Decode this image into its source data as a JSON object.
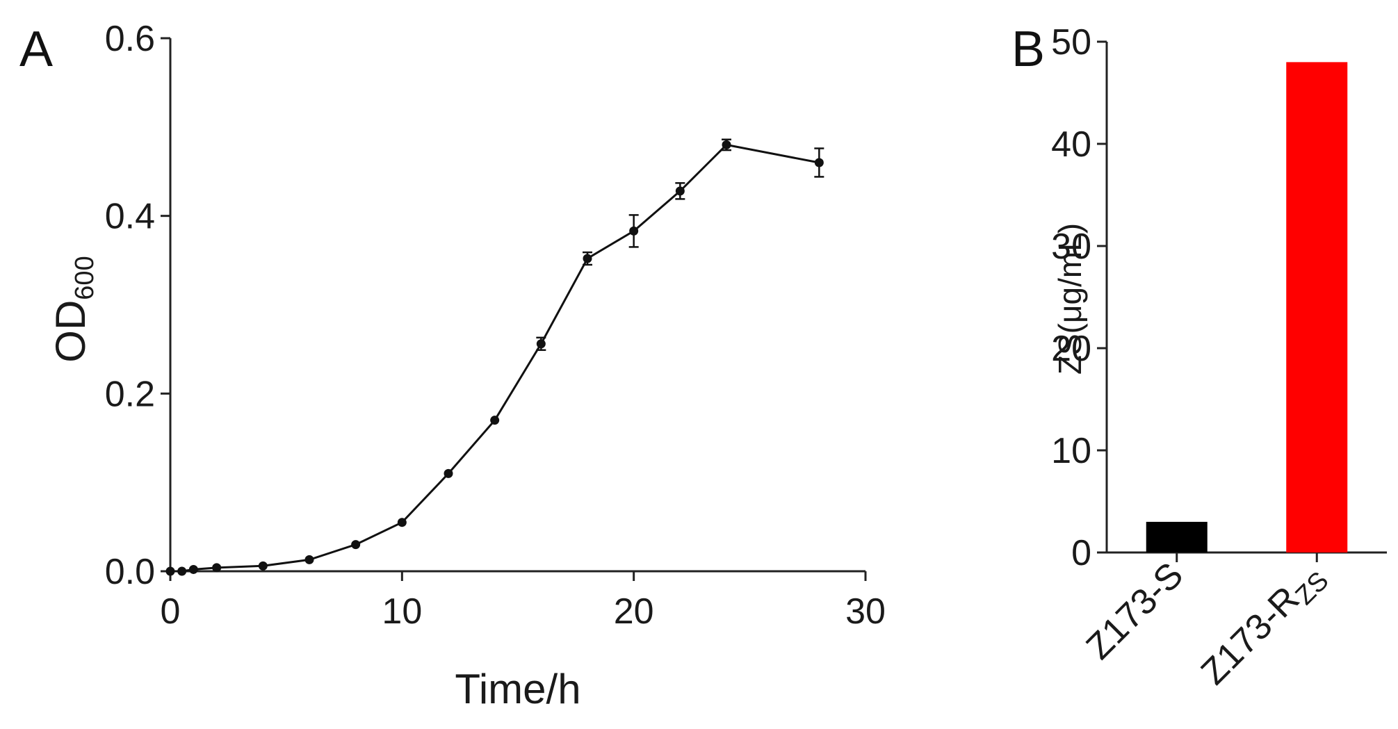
{
  "chart_data": [
    {
      "panel": "A",
      "type": "line",
      "title": "",
      "xlabel": "Time/h",
      "ylabel": {
        "main": "OD",
        "sub": "600"
      },
      "xlim": [
        0,
        30
      ],
      "ylim": [
        0,
        0.6
      ],
      "xticks": [
        0,
        10,
        20,
        30
      ],
      "xtick_labels": [
        "0",
        "10",
        "20",
        "30"
      ],
      "yticks": [
        0.0,
        0.2,
        0.4,
        0.6
      ],
      "ytick_labels": [
        "0.0",
        "0.2",
        "0.4",
        "0.6"
      ],
      "series": [
        {
          "name": "OD600",
          "x": [
            0,
            0.5,
            1,
            2,
            4,
            6,
            8,
            10,
            12,
            14,
            16,
            18,
            20,
            22,
            24,
            28
          ],
          "y": [
            0.0,
            0.0,
            0.002,
            0.004,
            0.006,
            0.013,
            0.03,
            0.055,
            0.11,
            0.17,
            0.256,
            0.352,
            0.383,
            0.428,
            0.48,
            0.46
          ],
          "err": [
            0,
            0,
            0,
            0,
            0,
            0,
            0,
            0,
            0,
            0,
            0.007,
            0.007,
            0.018,
            0.009,
            0.006,
            0.016
          ]
        }
      ],
      "grid": false,
      "color": "#111111"
    },
    {
      "panel": "B",
      "type": "bar",
      "title": "",
      "xlabel": "",
      "ylabel": "ZS(μg/mL)",
      "ylim": [
        0,
        50
      ],
      "yticks": [
        0,
        10,
        20,
        30,
        40,
        50
      ],
      "ytick_labels": [
        "0",
        "10",
        "20",
        "30",
        "40",
        "50"
      ],
      "categories": [
        {
          "main": "Z173-S",
          "sub": ""
        },
        {
          "main": "Z173-R",
          "sub": "ZS"
        }
      ],
      "values": [
        3,
        48
      ],
      "colors": [
        "#000000",
        "#ff0000"
      ],
      "grid": false
    }
  ]
}
